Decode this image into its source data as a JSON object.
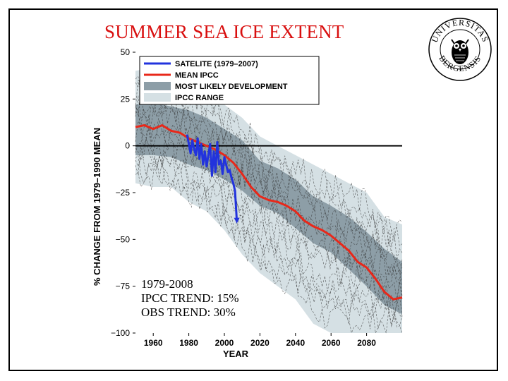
{
  "slide": {
    "title": "SUMMER SEA ICE EXTENT",
    "logo_text_top": "UNIVERSITAS",
    "logo_text_bottom": "BERGENSIS",
    "annotation": {
      "line1": "1979-2008",
      "line2": "IPCC TREND:  15%",
      "line3": "OBS TREND:    30%"
    }
  },
  "chart_data": {
    "type": "line",
    "title": "SUMMER SEA ICE EXTENT",
    "xlabel": "YEAR",
    "ylabel": "% CHANGE FROM 1979–1990 MEAN",
    "xlim": [
      1950,
      2100
    ],
    "ylim": [
      -100,
      50
    ],
    "xticks": [
      1960,
      1980,
      2000,
      2020,
      2040,
      2060,
      2080
    ],
    "yticks": [
      50,
      25,
      0,
      -25,
      -50,
      -75,
      -100
    ],
    "ytick_labels": [
      "50",
      "25",
      "0",
      "−25",
      "−50",
      "−75",
      "−100"
    ],
    "reference_line": 0,
    "legend": {
      "position": "top-left",
      "entries": [
        {
          "label": "SATELITE (1979–2007)",
          "style": "line",
          "color": "#2233dd"
        },
        {
          "label": "MEAN IPCC",
          "style": "line",
          "color": "#e8281a"
        },
        {
          "label": "MOST LIKELY DEVELOPMENT",
          "style": "fill",
          "color": "#8d9ea7"
        },
        {
          "label": "IPCC RANGE",
          "style": "fill",
          "color": "#d5e0e4"
        }
      ]
    },
    "series": [
      {
        "name": "SATELITE (1979–2007)",
        "color": "#2233dd",
        "x": [
          1979,
          1980,
          1981,
          1982,
          1983,
          1984,
          1985,
          1986,
          1987,
          1988,
          1989,
          1990,
          1991,
          1992,
          1993,
          1994,
          1995,
          1996,
          1997,
          1998,
          1999,
          2000,
          2001,
          2002,
          2003,
          2004,
          2005,
          2006,
          2007
        ],
        "y": [
          6,
          1,
          -4,
          3,
          -2,
          -5,
          4,
          -7,
          1,
          -10,
          -3,
          -11,
          -5,
          1,
          -16,
          -3,
          -14,
          2,
          -10,
          -8,
          -15,
          -6,
          -10,
          -14,
          -13,
          -17,
          -20,
          -24,
          -40
        ]
      },
      {
        "name": "MEAN IPCC",
        "color": "#e8281a",
        "x": [
          1950,
          1955,
          1960,
          1965,
          1970,
          1975,
          1980,
          1985,
          1990,
          1995,
          2000,
          2005,
          2010,
          2015,
          2020,
          2025,
          2030,
          2035,
          2040,
          2045,
          2050,
          2055,
          2060,
          2065,
          2070,
          2075,
          2080,
          2085,
          2090,
          2095,
          2100
        ],
        "y": [
          10,
          11,
          9,
          11,
          8,
          7,
          4,
          2,
          0,
          -2,
          -5,
          -9,
          -15,
          -22,
          -27,
          -29,
          -30,
          -32,
          -35,
          -40,
          -43,
          -45,
          -48,
          -52,
          -56,
          -62,
          -65,
          -71,
          -78,
          -82,
          -81
        ]
      },
      {
        "name": "MOST LIKELY DEVELOPMENT",
        "type": "band",
        "color": "#8d9ea7",
        "x": [
          1950,
          1960,
          1970,
          1980,
          1990,
          2000,
          2010,
          2020,
          2030,
          2040,
          2050,
          2060,
          2070,
          2080,
          2090,
          2100
        ],
        "lower": [
          -5,
          -5,
          -6,
          -10,
          -13,
          -18,
          -24,
          -32,
          -36,
          -44,
          -52,
          -57,
          -66,
          -75,
          -85,
          -90
        ],
        "upper": [
          22,
          23,
          21,
          19,
          15,
          9,
          3,
          -8,
          -12,
          -18,
          -27,
          -32,
          -38,
          -46,
          -55,
          -62
        ]
      },
      {
        "name": "IPCC RANGE",
        "type": "band",
        "color": "#d5e0e4",
        "x": [
          1950,
          1960,
          1970,
          1980,
          1990,
          2000,
          2010,
          2020,
          2030,
          2040,
          2050,
          2060,
          2070,
          2080,
          2090,
          2100
        ],
        "lower": [
          -20,
          -22,
          -22,
          -30,
          -35,
          -45,
          -58,
          -68,
          -75,
          -82,
          -95,
          -100,
          -100,
          -100,
          -100,
          -100
        ],
        "upper": [
          40,
          42,
          38,
          35,
          30,
          22,
          15,
          5,
          0,
          -5,
          -10,
          -15,
          -20,
          -25,
          -38,
          -42
        ]
      }
    ]
  }
}
